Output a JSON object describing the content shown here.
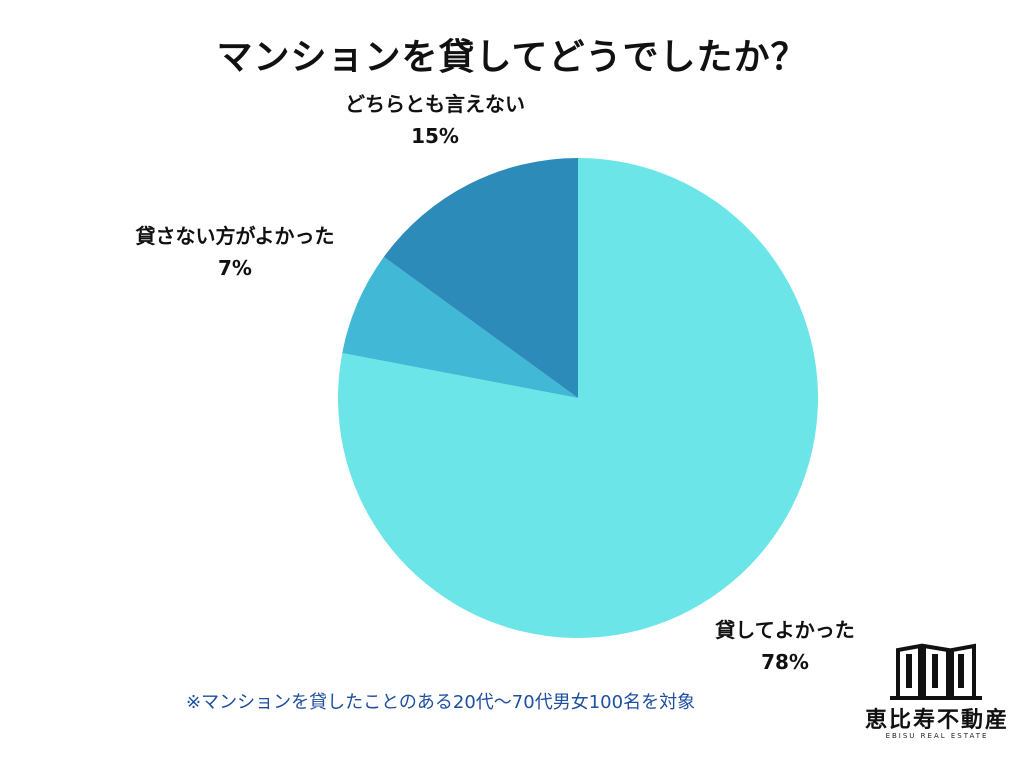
{
  "chart_data": {
    "type": "pie",
    "title": "マンションを貸してどうでしたか？",
    "slices": [
      {
        "label": "貸してよかった",
        "value": 78,
        "value_label": "78%",
        "color": "#6ce5e8"
      },
      {
        "label": "貸さない方がよかった",
        "value": 7,
        "value_label": "7%",
        "color": "#41b8d5"
      },
      {
        "label": "どちらとも言えない",
        "value": 15,
        "value_label": "15%",
        "color": "#2d8bba"
      }
    ],
    "start_angle_deg": 0,
    "direction": "clockwise"
  },
  "footnote": "※マンションを貸したことのある20代〜70代男女100名を対象",
  "logo": {
    "name": "恵比寿不動産",
    "sub": "EBISU REAL ESTATE"
  }
}
